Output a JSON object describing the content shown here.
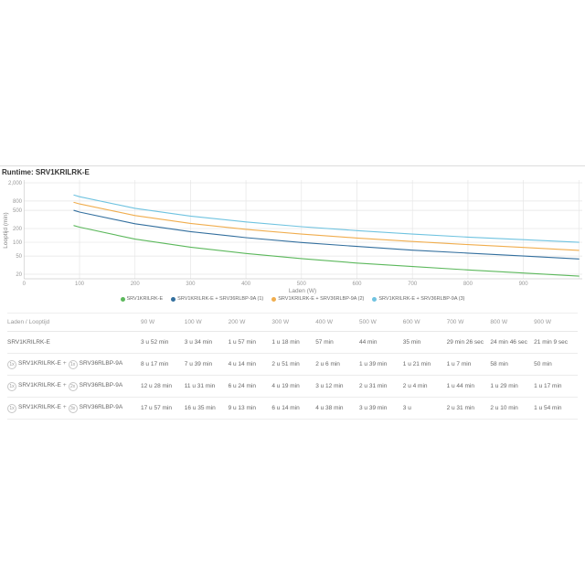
{
  "page": {
    "title": "Runtime: SRV1KRILRK-E"
  },
  "chart_data": {
    "type": "line",
    "title": "Runtime: SRV1KRILRK-E",
    "xlabel": "Laden (W)",
    "ylabel": "Looptijd (min)",
    "y_scale": "log",
    "grid": true,
    "legend_position": "bottom",
    "x": [
      90,
      100,
      200,
      300,
      400,
      500,
      600,
      700,
      800,
      900
    ],
    "x_tick_labels": [
      "0",
      "100",
      "200",
      "300",
      "400",
      "500",
      "600",
      "700",
      "800",
      "900"
    ],
    "x_tick_values": [
      0,
      100,
      200,
      300,
      400,
      500,
      600,
      700,
      800,
      900
    ],
    "xlim": [
      0,
      1005
    ],
    "y_tick_labels": [
      "2,000",
      "800",
      "500",
      "200",
      "100",
      "50",
      "20"
    ],
    "y_tick_values": [
      2000,
      800,
      500,
      200,
      100,
      50,
      20
    ],
    "ylim": [
      16,
      2300
    ],
    "series": [
      {
        "name": "SRV1KRILRK-E",
        "color": "#5cb85c",
        "values": [
          232,
          214,
          117,
          78,
          57,
          44,
          35,
          29.4,
          24.8,
          21.2
        ]
      },
      {
        "name": "SRV1KRILRK-E + SRV36RLBP-9A (1)",
        "color": "#336f9e",
        "values": [
          497,
          459,
          254,
          171,
          126,
          99,
          81,
          67,
          58,
          50
        ]
      },
      {
        "name": "SRV1KRILRK-E + SRV36RLBP-9A (2)",
        "color": "#f0ad4e",
        "values": [
          748,
          691,
          384,
          259,
          192,
          151,
          124,
          104,
          89,
          77
        ]
      },
      {
        "name": "SRV1KRILRK-E + SRV36RLBP-9A (3)",
        "color": "#6fc3e0",
        "values": [
          1077,
          995,
          553,
          374,
          278,
          219,
          180,
          151,
          130,
          114
        ]
      }
    ]
  },
  "table": {
    "corner_label": "Laden / Looptijd",
    "columns": [
      "90 W",
      "100 W",
      "200 W",
      "300 W",
      "400 W",
      "500 W",
      "600 W",
      "700 W",
      "800 W",
      "900 W"
    ],
    "rows": [
      {
        "label_parts": [
          {
            "badge": "",
            "text": "SRV1KRILRK-E"
          }
        ],
        "values": [
          "3 u 52 min",
          "3 u 34 min",
          "1 u 57 min",
          "1 u 18 min",
          "57 min",
          "44 min",
          "35 min",
          "29 min 26 sec",
          "24 min 46 sec",
          "21 min 9 sec"
        ]
      },
      {
        "label_parts": [
          {
            "badge": "1x",
            "text": "SRV1KRILRK-E"
          },
          {
            "badge": "1x",
            "text": "SRV36RLBP-9A"
          }
        ],
        "values": [
          "8 u 17 min",
          "7 u 39 min",
          "4 u 14 min",
          "2 u 51 min",
          "2 u 6 min",
          "1 u 39 min",
          "1 u 21 min",
          "1 u 7 min",
          "58 min",
          "50 min"
        ]
      },
      {
        "label_parts": [
          {
            "badge": "1x",
            "text": "SRV1KRILRK-E"
          },
          {
            "badge": "2x",
            "text": "SRV36RLBP-9A"
          }
        ],
        "values": [
          "12 u 28 min",
          "11 u 31 min",
          "6 u 24 min",
          "4 u 19 min",
          "3 u 12 min",
          "2 u 31 min",
          "2 u 4 min",
          "1 u 44 min",
          "1 u 29 min",
          "1 u 17 min"
        ]
      },
      {
        "label_parts": [
          {
            "badge": "1x",
            "text": "SRV1KRILRK-E"
          },
          {
            "badge": "3x",
            "text": "SRV36RLBP-9A"
          }
        ],
        "values": [
          "17 u 57 min",
          "16 u 35 min",
          "9 u 13 min",
          "6 u 14 min",
          "4 u 38 min",
          "3 u 39 min",
          "3 u",
          "2 u 31 min",
          "2 u 10 min",
          "1 u 54 min"
        ]
      }
    ]
  }
}
